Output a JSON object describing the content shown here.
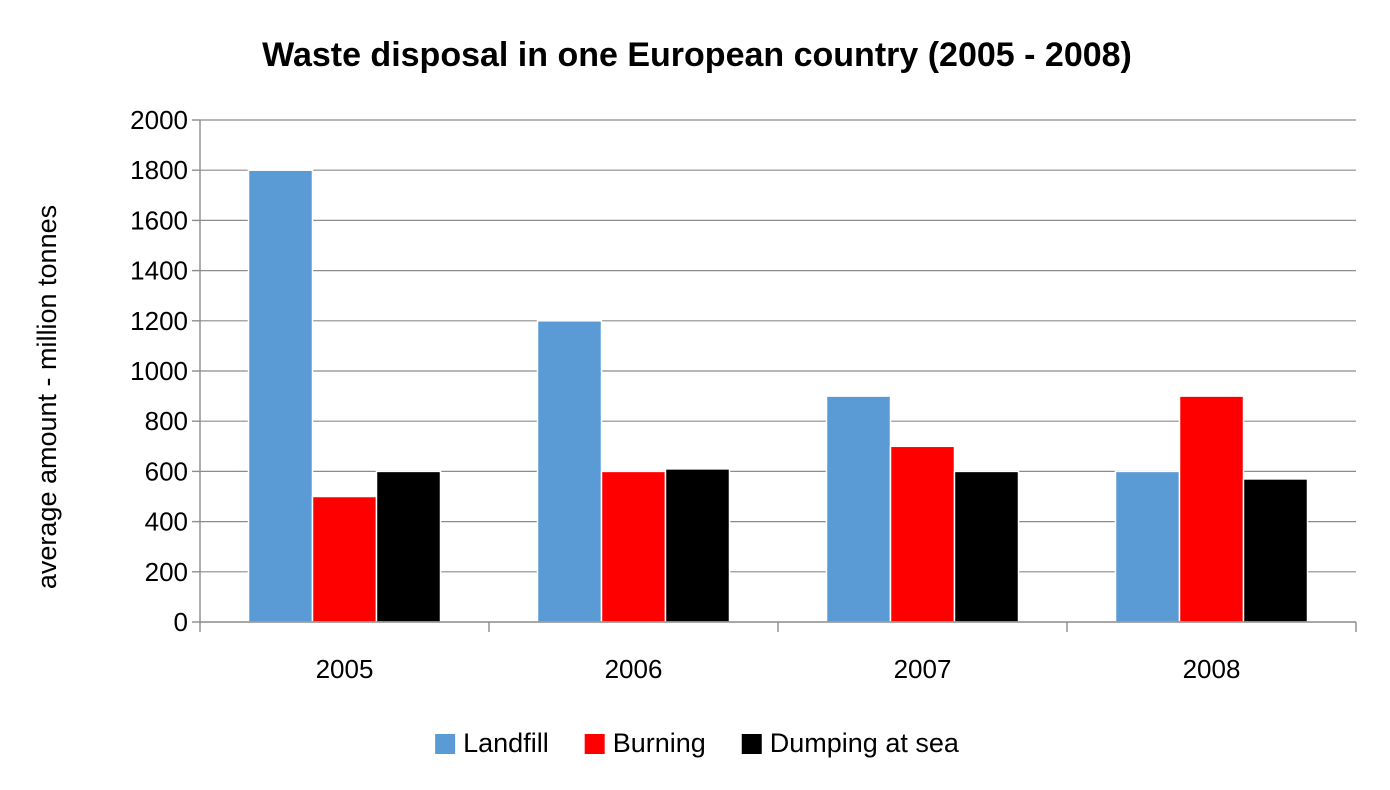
{
  "chart_data": {
    "type": "bar",
    "title": "Waste disposal in one European country (2005 - 2008)",
    "xlabel": "",
    "ylabel": "average amount - million tonnes",
    "categories": [
      "2005",
      "2006",
      "2007",
      "2008"
    ],
    "series": [
      {
        "name": "Landfill",
        "color": "#5b9bd5",
        "values": [
          1800,
          1200,
          900,
          600
        ]
      },
      {
        "name": "Burning",
        "color": "#ff0000",
        "values": [
          500,
          600,
          700,
          900
        ]
      },
      {
        "name": "Dumping at sea",
        "color": "#000000",
        "values": [
          600,
          610,
          600,
          570
        ]
      }
    ],
    "ylim": [
      0,
      2000
    ],
    "yticks": [
      0,
      200,
      400,
      600,
      800,
      1000,
      1200,
      1400,
      1600,
      1800,
      2000
    ],
    "grid": true,
    "legend_position": "bottom"
  }
}
